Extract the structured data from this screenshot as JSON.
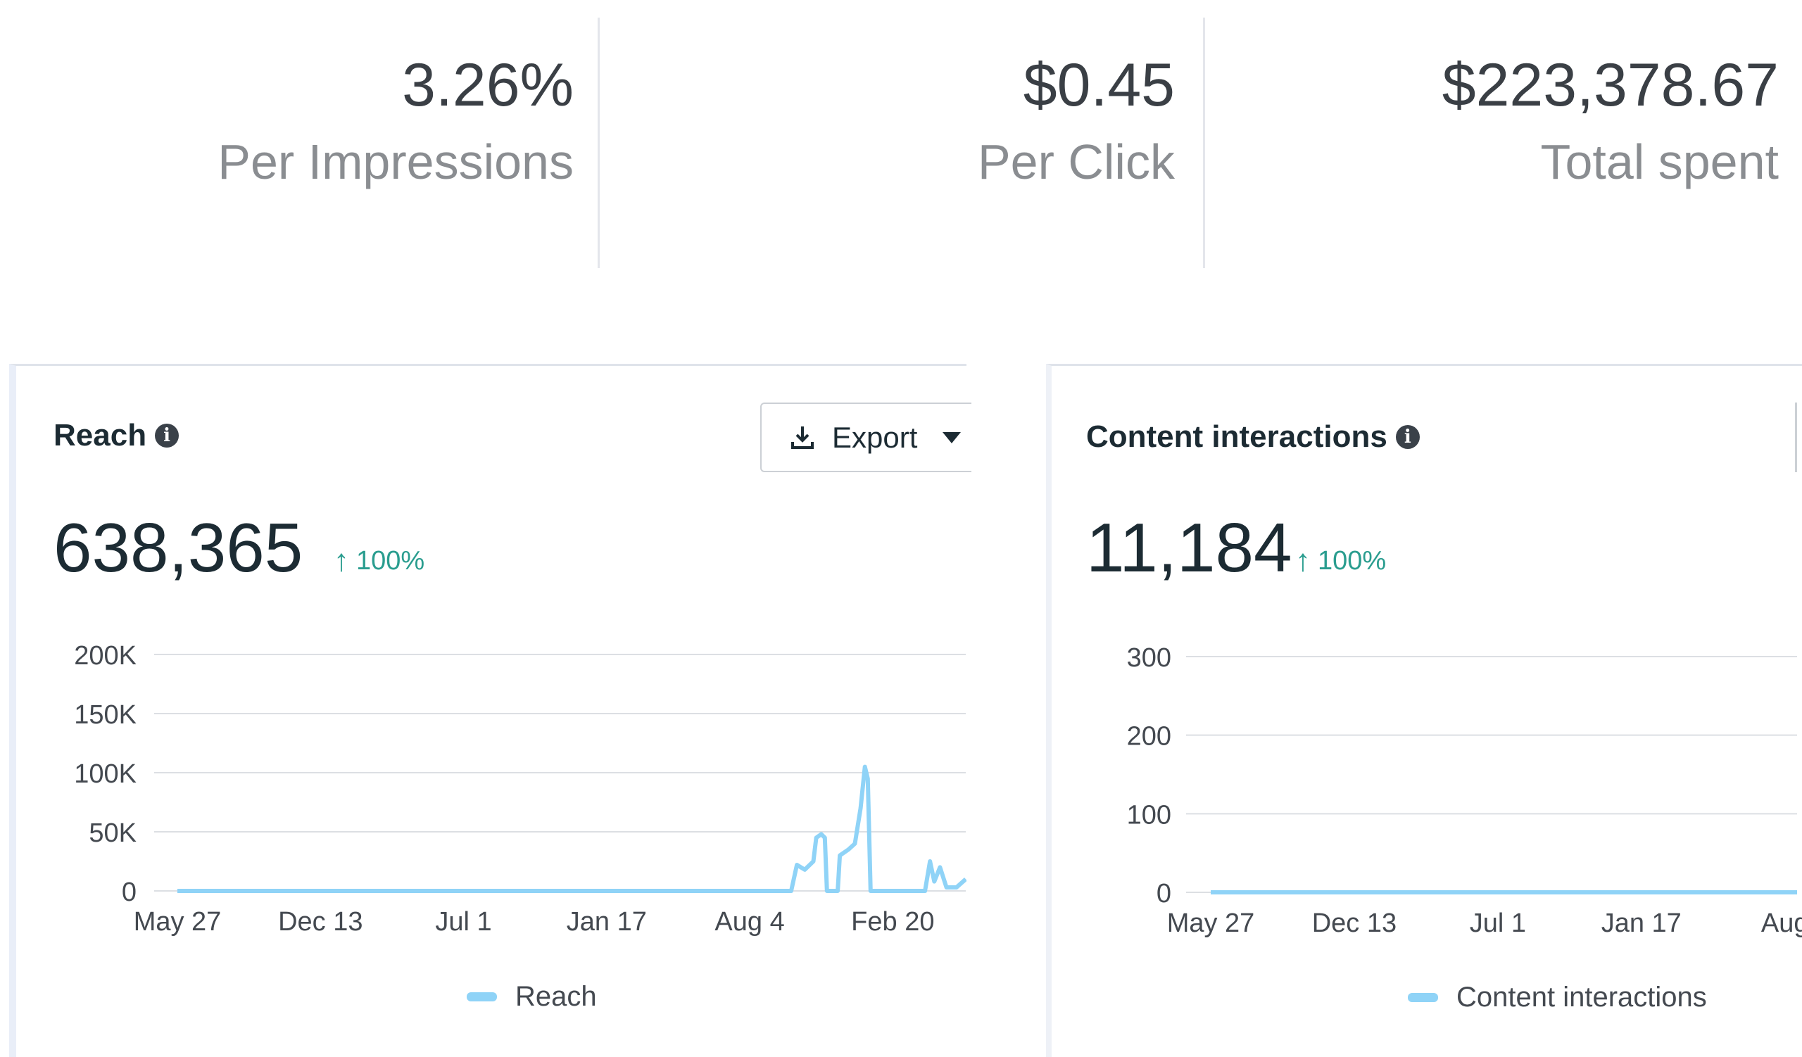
{
  "stats": [
    {
      "value": "3.26%",
      "label": "Per Impressions"
    },
    {
      "value": "$0.45",
      "label": "Per Click"
    },
    {
      "value": "$223,378.67",
      "label": "Total spent"
    }
  ],
  "colors": {
    "line": "#8fd3f7",
    "positive": "#2a9d8f",
    "grid": "#dcdfe3"
  },
  "reach_card": {
    "title": "Reach",
    "info_icon": "i",
    "export_label": "Export",
    "value": "638,365",
    "delta_arrow": "↑",
    "delta": "100%",
    "legend": "Reach"
  },
  "interactions_card": {
    "title": "Content interactions",
    "info_icon": "i",
    "value": "11,184",
    "delta_arrow": "↑",
    "delta": "100%",
    "legend": "Content interactions"
  },
  "chart_data": [
    {
      "type": "line",
      "title": "Reach",
      "xlabel": "",
      "ylabel": "",
      "x_unit": "days since May 27",
      "xlim": [
        0,
        1102
      ],
      "ylim": [
        0,
        200000
      ],
      "yticks": [
        0,
        50000,
        100000,
        150000,
        200000
      ],
      "ytick_labels": [
        "0",
        "50K",
        "100K",
        "150K",
        "200K"
      ],
      "xticks": [
        0,
        200,
        400,
        600,
        800,
        1000
      ],
      "xtick_labels": [
        "May 27",
        "Dec 13",
        "Jul 1",
        "Jan 17",
        "Aug 4",
        "Feb 20"
      ],
      "grid": true,
      "legend_position": "bottom",
      "series": [
        {
          "name": "Reach",
          "points": [
            [
              0,
              0
            ],
            [
              858,
              0
            ],
            [
              866,
              22000
            ],
            [
              877,
              18000
            ],
            [
              889,
              25000
            ],
            [
              893,
              45000
            ],
            [
              900,
              48000
            ],
            [
              905,
              45000
            ],
            [
              908,
              0
            ],
            [
              923,
              0
            ],
            [
              926,
              30000
            ],
            [
              938,
              35000
            ],
            [
              947,
              40000
            ],
            [
              955,
              70000
            ],
            [
              961,
              105000
            ],
            [
              965,
              95000
            ],
            [
              969,
              0
            ],
            [
              1045,
              0
            ],
            [
              1052,
              25000
            ],
            [
              1058,
              8000
            ],
            [
              1066,
              20000
            ],
            [
              1075,
              3000
            ],
            [
              1089,
              3000
            ],
            [
              1102,
              10000
            ]
          ]
        }
      ]
    },
    {
      "type": "line",
      "title": "Content interactions",
      "xlabel": "",
      "ylabel": "",
      "x_unit": "days since May 27",
      "xlim": [
        0,
        817
      ],
      "ylim": [
        0,
        300
      ],
      "yticks": [
        0,
        100,
        200,
        300
      ],
      "ytick_labels": [
        "0",
        "100",
        "200",
        "300"
      ],
      "xticks": [
        0,
        200,
        400,
        600,
        800
      ],
      "xtick_labels": [
        "May 27",
        "Dec 13",
        "Jul 1",
        "Jan 17",
        "Aug"
      ],
      "grid": true,
      "legend_position": "bottom",
      "series": [
        {
          "name": "Content interactions",
          "points": [
            [
              0,
              0
            ],
            [
              817,
              0
            ]
          ]
        }
      ]
    }
  ]
}
